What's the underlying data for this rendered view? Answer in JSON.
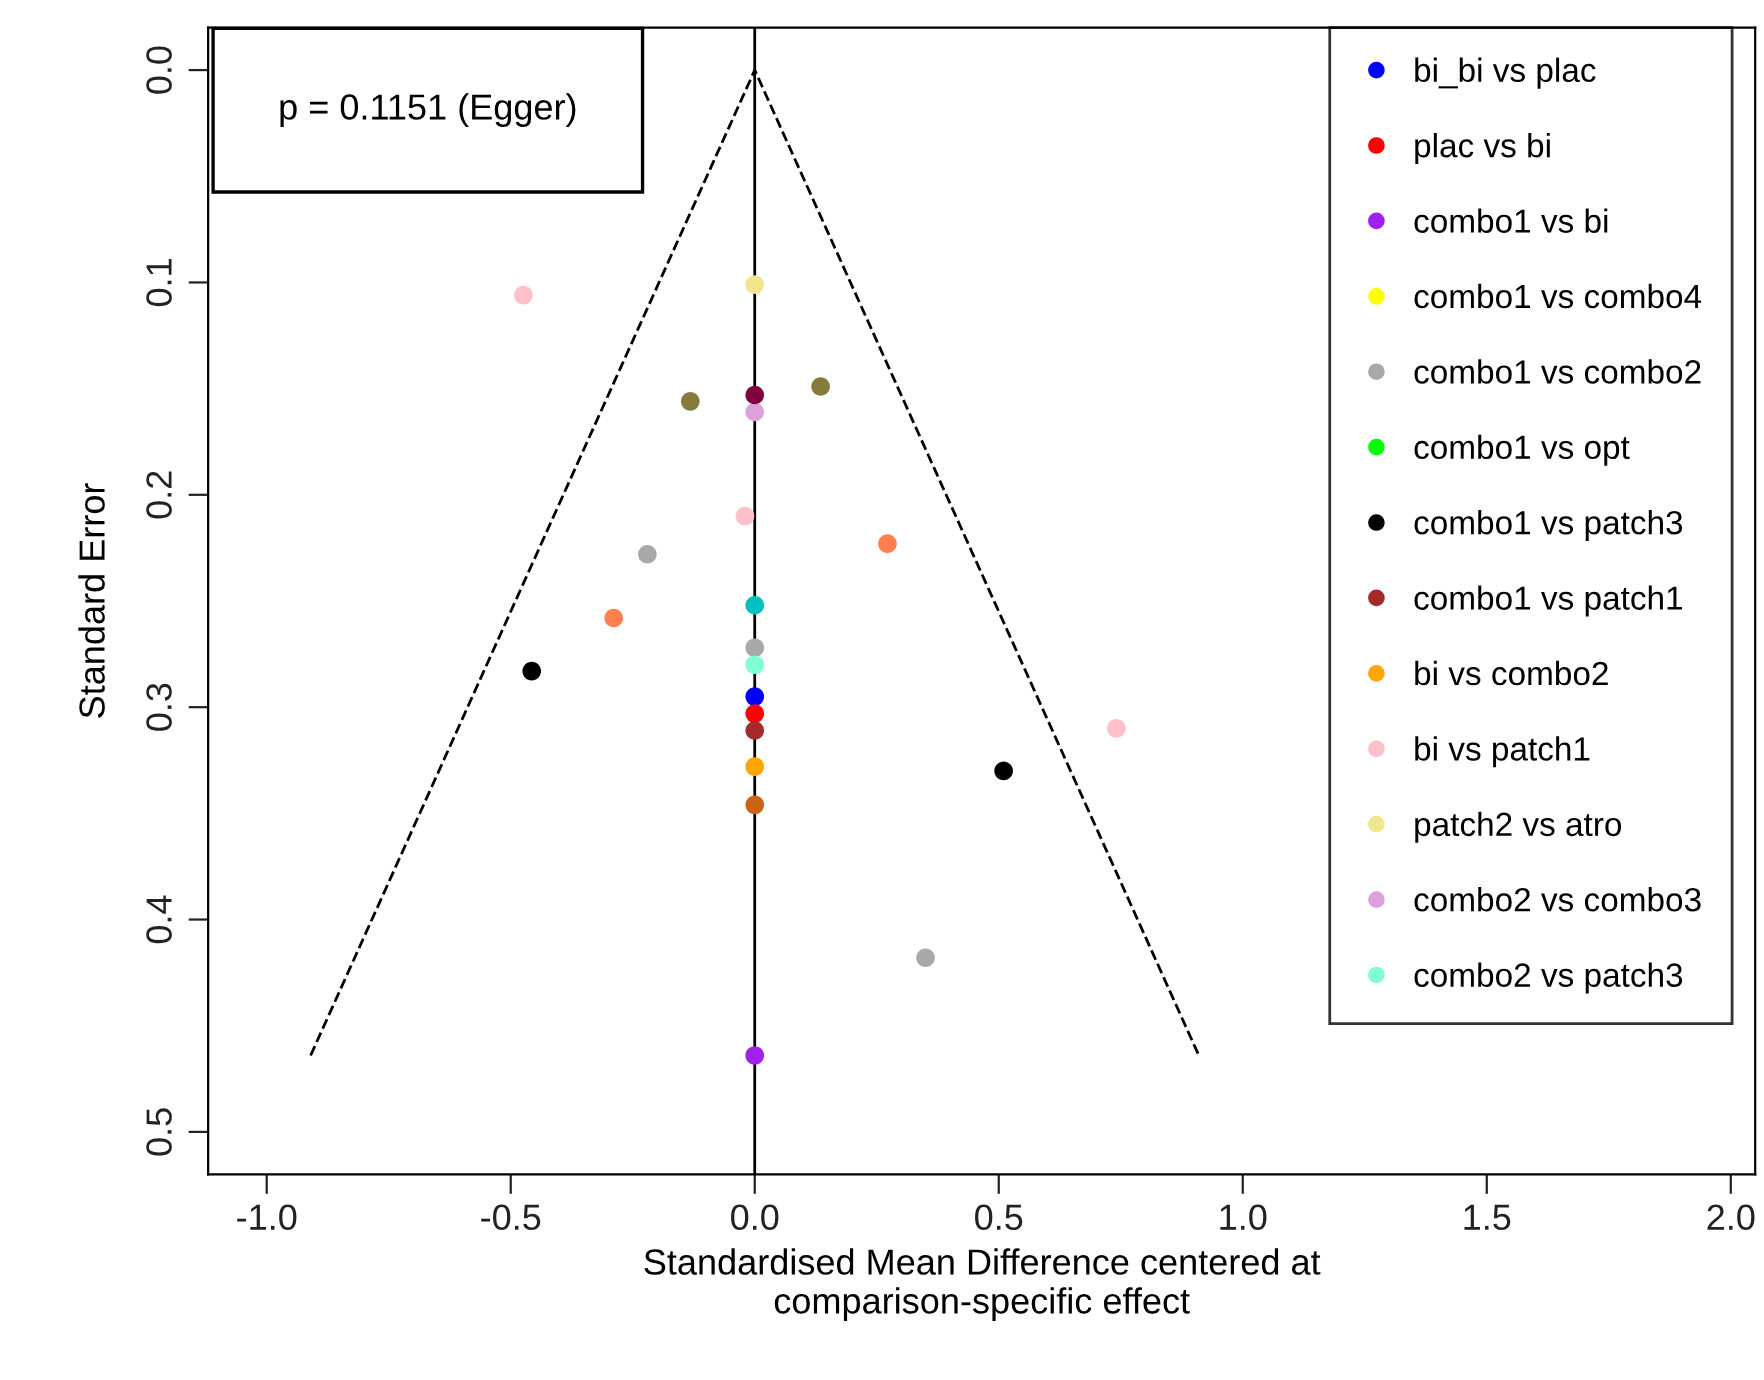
{
  "chart_data": {
    "type": "scatter",
    "xlabel": "Standardised Mean Difference centered at\ncomparison-specific effect",
    "ylabel": "Standard Error",
    "annotations": [
      "p = 0.1151 (Egger)"
    ],
    "xlim": [
      -1.12,
      2.05
    ],
    "ylim": [
      0.52,
      -0.02
    ],
    "xticks": [
      {
        "value": -1.0,
        "label": "-1.0"
      },
      {
        "value": -0.5,
        "label": "-0.5"
      },
      {
        "value": 0.0,
        "label": "0.0"
      },
      {
        "value": 0.5,
        "label": "0.5"
      },
      {
        "value": 1.0,
        "label": "1.0"
      },
      {
        "value": 1.5,
        "label": "1.5"
      },
      {
        "value": 2.0,
        "label": "2.0"
      }
    ],
    "yticks": [
      {
        "value": 0.0,
        "label": "0.0"
      },
      {
        "value": 0.1,
        "label": "0.1"
      },
      {
        "value": 0.2,
        "label": "0.2"
      },
      {
        "value": 0.3,
        "label": "0.3"
      },
      {
        "value": 0.4,
        "label": "0.4"
      },
      {
        "value": 0.5,
        "label": "0.5"
      }
    ],
    "legend": "right",
    "marker": "circle",
    "ref_lines": [
      {
        "axis": "x",
        "value": 0,
        "color": "#000000",
        "line_style": "solid"
      }
    ],
    "series": [
      {
        "type": "line",
        "color": "#000000",
        "line_style": "dashed",
        "marker": "none",
        "x": [
          -0.91,
          0,
          0.91
        ],
        "values": [
          0.464,
          0,
          0.464
        ]
      },
      {
        "name": "bi_bi vs plac",
        "color": "#0000ff",
        "x": [
          0
        ],
        "values": [
          0.295
        ]
      },
      {
        "name": "plac vs bi",
        "color": "#ff0000",
        "x": [
          0
        ],
        "values": [
          0.303
        ]
      },
      {
        "name": "combo1 vs bi",
        "color": "#a020f0",
        "x": [
          0
        ],
        "values": [
          0.464
        ]
      },
      {
        "name": "combo1 vs combo4",
        "color": "#ffff00"
      },
      {
        "name": "combo1 vs combo2",
        "color": "#a8a8a8",
        "x": [
          -0.22,
          0,
          0.35
        ],
        "values": [
          0.228,
          0.272,
          0.418
        ]
      },
      {
        "name": "combo1 vs opt",
        "color": "#00ff00"
      },
      {
        "name": "combo1 vs patch3",
        "color": "#000000",
        "x": [
          -0.457,
          0.51
        ],
        "values": [
          0.283,
          0.33
        ]
      },
      {
        "name": "combo1 vs patch1",
        "color": "#a52a2a",
        "x": [
          0
        ],
        "values": [
          0.311
        ]
      },
      {
        "name": "bi vs combo2",
        "color": "#ffa500",
        "x": [
          0
        ],
        "values": [
          0.328
        ]
      },
      {
        "name": "bi vs patch1",
        "color": "#ffc0cb",
        "x": [
          -0.474,
          -0.02,
          0.741
        ],
        "values": [
          0.106,
          0.21,
          0.31
        ]
      },
      {
        "name": "patch2 vs atro",
        "color": "#f0e68c",
        "x": [
          0
        ],
        "values": [
          0.101
        ]
      },
      {
        "name": "combo2 vs combo3",
        "color": "#dda0dd",
        "x": [
          0
        ],
        "values": [
          0.161
        ]
      },
      {
        "name": "combo2 vs patch3",
        "color": "#7fffd4",
        "x": [
          0
        ],
        "values": [
          0.28
        ]
      },
      {
        "color": "#857c3c",
        "x": [
          -0.132,
          0.135
        ],
        "values": [
          0.156,
          0.149
        ]
      },
      {
        "color": "#800040",
        "x": [
          0
        ],
        "values": [
          0.153
        ]
      },
      {
        "color": "#ff7f50",
        "x": [
          -0.289,
          0.272
        ],
        "values": [
          0.258,
          0.223
        ]
      },
      {
        "color": "#00c0c0",
        "x": [
          0
        ],
        "values": [
          0.252
        ]
      },
      {
        "color": "#c86414",
        "x": [
          0
        ],
        "values": [
          0.346
        ]
      }
    ]
  }
}
